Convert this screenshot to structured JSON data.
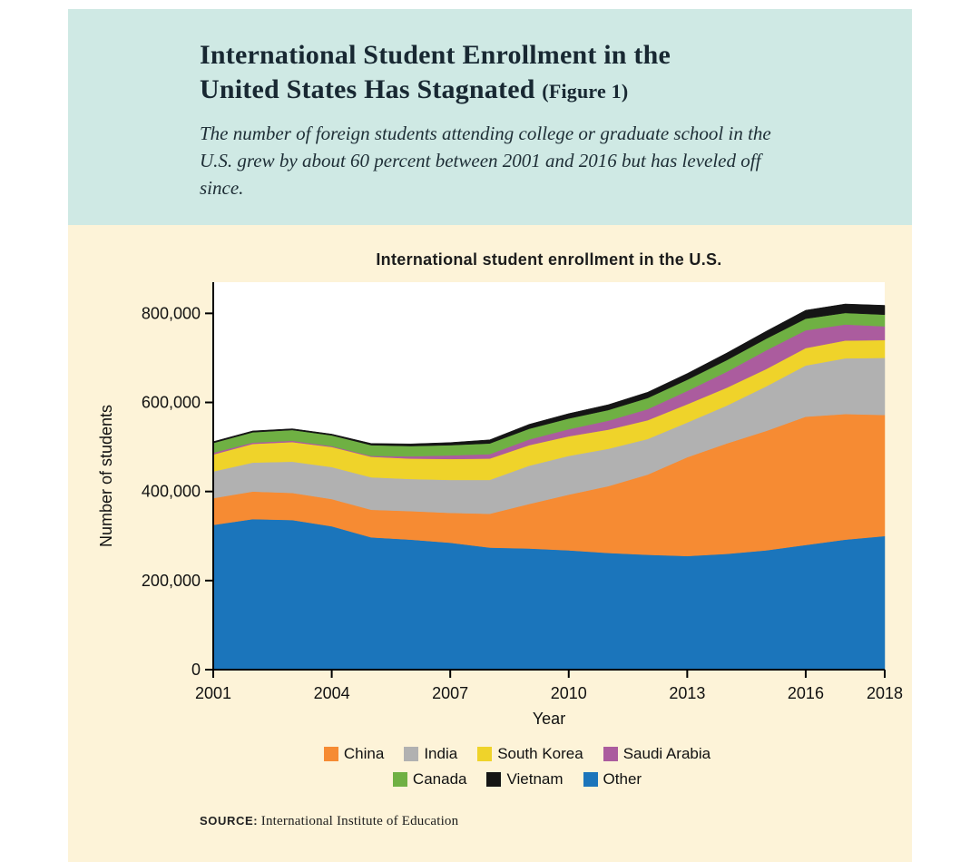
{
  "header": {
    "title_line1": "International Student Enrollment in the",
    "title_line2": "United States Has Stagnated",
    "title_figure": "(Figure 1)",
    "subtitle": "The number of foreign students attending college or graduate school in the U.S. grew by about 60 percent between 2001 and 2016 but has leveled off since."
  },
  "chart": {
    "title": "International student enrollment in the U.S.",
    "source_label": "SOURCE:",
    "source_text": "International Institute of Education"
  },
  "chart_data": {
    "type": "area",
    "stacked": true,
    "title": "International student enrollment in the U.S.",
    "xlabel": "Year",
    "ylabel": "Number of students",
    "x": [
      2001,
      2002,
      2003,
      2004,
      2005,
      2006,
      2007,
      2008,
      2009,
      2010,
      2011,
      2012,
      2013,
      2014,
      2015,
      2016,
      2017,
      2018
    ],
    "x_ticks": [
      2001,
      2004,
      2007,
      2010,
      2013,
      2016,
      2018
    ],
    "y_ticks": [
      0,
      200000,
      400000,
      600000,
      800000
    ],
    "ylim": [
      0,
      870000
    ],
    "grid": false,
    "stack_order_bottom_to_top": [
      "Other",
      "China",
      "India",
      "South Korea",
      "Saudi Arabia",
      "Canada",
      "Vietnam"
    ],
    "series": [
      {
        "name": "Other",
        "color": "#1b75bb",
        "values": [
          325000,
          338000,
          336000,
          322000,
          297000,
          292000,
          285000,
          274000,
          272000,
          268000,
          262000,
          258000,
          255000,
          260000,
          268000,
          280000,
          292000,
          300000
        ]
      },
      {
        "name": "China",
        "color": "#f68b33",
        "values": [
          60000,
          62000,
          61000,
          61000,
          62000,
          64000,
          67000,
          76000,
          100000,
          125000,
          150000,
          180000,
          222000,
          248000,
          268000,
          288000,
          282000,
          272000
        ]
      },
      {
        "name": "India",
        "color": "#b1b1b1",
        "values": [
          60000,
          65000,
          70000,
          72000,
          73000,
          72000,
          74000,
          76000,
          86000,
          87000,
          84000,
          80000,
          78000,
          85000,
          100000,
          115000,
          125000,
          128000
        ]
      },
      {
        "name": "South Korea",
        "color": "#efd32a",
        "values": [
          38000,
          42000,
          44000,
          45000,
          46000,
          46000,
          47000,
          48000,
          46000,
          44000,
          43000,
          42000,
          41000,
          40000,
          39000,
          39000,
          40000,
          40000
        ]
      },
      {
        "name": "Saudi Arabia",
        "color": "#ab5c9e",
        "values": [
          4000,
          3000,
          3000,
          2000,
          2000,
          5000,
          8000,
          10000,
          13000,
          16000,
          20000,
          25000,
          30000,
          36000,
          42000,
          40000,
          36000,
          31000
        ]
      },
      {
        "name": "Canada",
        "color": "#6fb043",
        "values": [
          22000,
          23000,
          24000,
          24000,
          24000,
          23000,
          23000,
          24000,
          24000,
          24000,
          24000,
          25000,
          25000,
          26000,
          26000,
          26000,
          26000,
          26000
        ]
      },
      {
        "name": "Vietnam",
        "color": "#151515",
        "values": [
          3000,
          3000,
          3000,
          3000,
          4000,
          5000,
          6000,
          8000,
          10000,
          11000,
          12000,
          13000,
          14000,
          16000,
          17000,
          19000,
          20000,
          21000
        ]
      }
    ],
    "legend": {
      "position": "bottom",
      "rows": [
        [
          "China",
          "India",
          "South Korea",
          "Saudi Arabia"
        ],
        [
          "Canada",
          "Vietnam",
          "Other"
        ]
      ]
    }
  },
  "colors": {
    "page_bg": "#ffffff",
    "header_bg": "#cfe9e4",
    "body_bg": "#fdf3d8",
    "plot_bg": "#ffffff",
    "axis": "#000000",
    "text": "#182832"
  }
}
